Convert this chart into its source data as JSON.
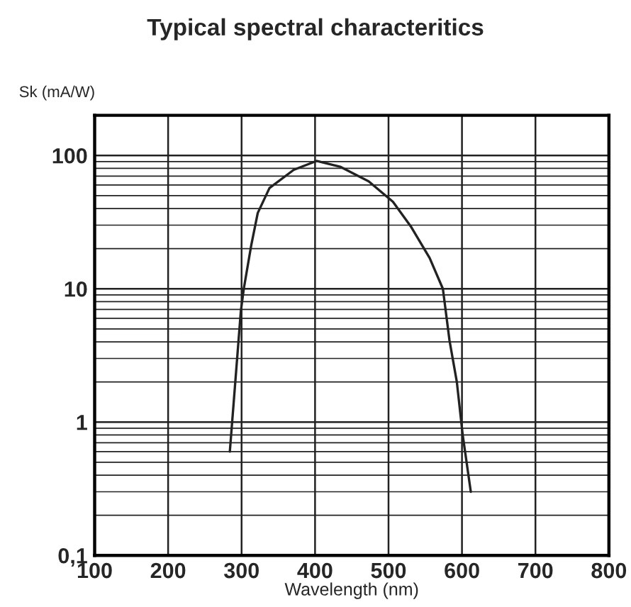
{
  "chart_data": {
    "type": "line",
    "title": "Typical spectral characteritics",
    "xlabel": "Wavelength (nm)",
    "ylabel": "Sk (mA/W)",
    "x": [
      284,
      299,
      303,
      313,
      322,
      338,
      371,
      402,
      435,
      473,
      506,
      531,
      556,
      574,
      583,
      593,
      601,
      612
    ],
    "series": [
      {
        "color": "#222222",
        "values": [
          0.6,
          6.8,
          10,
          21,
          37,
          57,
          78,
          91,
          82,
          64,
          45,
          29,
          17,
          10,
          4.1,
          2.0,
          0.8,
          0.3
        ]
      }
    ],
    "log": "y",
    "xlim": [
      100,
      800
    ],
    "ylim": [
      0.1,
      200
    ],
    "xticks": [
      100,
      200,
      300,
      400,
      500,
      600,
      700,
      800
    ],
    "yticks": [
      {
        "value": 0.1,
        "label": "0,1"
      },
      1,
      10,
      100
    ],
    "grid": true,
    "marker": "none",
    "line_style": "solid"
  }
}
